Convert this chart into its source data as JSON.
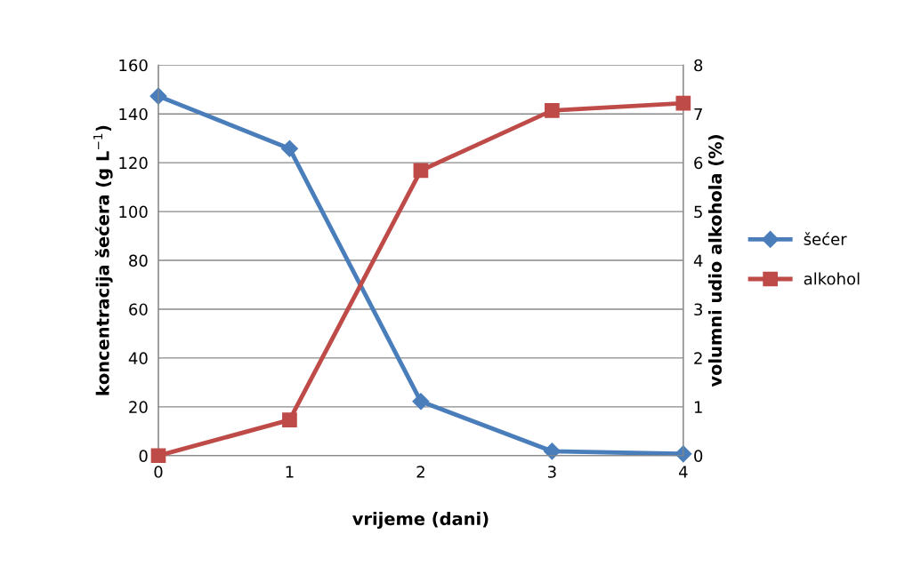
{
  "chart_data": {
    "type": "line",
    "xlabel": "vrijeme (dani)",
    "ylabel": "koncentracija šećera (g L$^{−1}$)",
    "y2label": "volumni udio alkohola (%)",
    "x": [
      0,
      1,
      2,
      3,
      4
    ],
    "xlim": [
      0,
      4
    ],
    "xticks": [
      0,
      1,
      2,
      3,
      4
    ],
    "ylim": [
      0,
      160
    ],
    "yticks": [
      0,
      20,
      40,
      60,
      80,
      100,
      120,
      140,
      160
    ],
    "y2lim": [
      0,
      8
    ],
    "y2ticks": [
      0,
      1,
      2,
      3,
      4,
      5,
      6,
      7,
      8
    ],
    "grid": "y",
    "legend": "right",
    "series": [
      {
        "name": "šećer",
        "color": "#4a7ebb",
        "marker": "diamond",
        "values": [
          147.3,
          125.8,
          22.2,
          1.8,
          0.7
        ]
      },
      {
        "name": "alkohol",
        "color": "#be4b48",
        "marker": "square",
        "axis": "y2",
        "values": [
          0,
          0.73,
          5.84,
          7.07,
          7.22
        ]
      }
    ]
  }
}
